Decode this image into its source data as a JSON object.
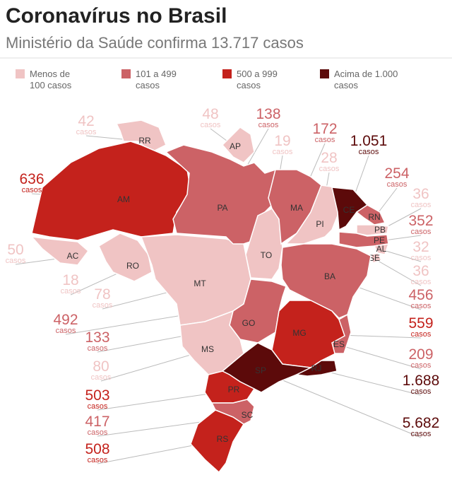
{
  "header": {
    "title": "Coronavírus no Brasil",
    "subtitle": "Ministério da Saúde confirma 13.717 casos"
  },
  "legend": [
    {
      "lines": [
        "Menos de",
        "100 casos"
      ],
      "color": "#f0c4c4"
    },
    {
      "lines": [
        "101 a 499",
        "casos"
      ],
      "color": "#cc6266"
    },
    {
      "lines": [
        "500 a 999",
        "casos"
      ],
      "color": "#c4221c"
    },
    {
      "lines": [
        "Acima de 1.000",
        "casos"
      ],
      "color": "#5c0a0a"
    }
  ],
  "unit_label": "casos",
  "states": [
    {
      "abbr": "RR",
      "cases": 42,
      "color": "#f0c4c4"
    },
    {
      "abbr": "AP",
      "cases": 48,
      "color": "#f0c4c4"
    },
    {
      "abbr": "AM",
      "cases": 636,
      "color": "#c4221c"
    },
    {
      "abbr": "AC",
      "cases": 50,
      "color": "#f0c4c4"
    },
    {
      "abbr": "RO",
      "cases": 18,
      "color": "#f0c4c4"
    },
    {
      "abbr": "MT",
      "cases": 78,
      "color": "#f0c4c4"
    },
    {
      "abbr": "PA",
      "cases": 138,
      "color": "#cc6266"
    },
    {
      "abbr": "TO",
      "cases": 19,
      "color": "#f0c4c4"
    },
    {
      "abbr": "MA",
      "cases": 172,
      "color": "#cc6266"
    },
    {
      "abbr": "PI",
      "cases": 28,
      "color": "#f0c4c4"
    },
    {
      "abbr": "CE",
      "cases": {
        "value": 1051,
        "label": "1.051"
      },
      "color": "#5c0a0a"
    },
    {
      "abbr": "RN",
      "cases": 254,
      "color": "#cc6266"
    },
    {
      "abbr": "PB",
      "cases": 36,
      "color": "#f0c4c4"
    },
    {
      "abbr": "PE",
      "cases": 352,
      "color": "#cc6266"
    },
    {
      "abbr": "AL",
      "cases": 32,
      "color": "#f0c4c4"
    },
    {
      "abbr": "SE",
      "cases": 36,
      "color": "#f0c4c4"
    },
    {
      "abbr": "BA",
      "cases": 456,
      "color": "#cc6266"
    },
    {
      "abbr": "DF",
      "cases": 492,
      "color": "#cc6266"
    },
    {
      "abbr": "GO",
      "cases": 133,
      "color": "#cc6266"
    },
    {
      "abbr": "MG",
      "cases": 559,
      "color": "#c4221c"
    },
    {
      "abbr": "ES",
      "cases": 209,
      "color": "#cc6266"
    },
    {
      "abbr": "MS",
      "cases": 80,
      "color": "#f0c4c4"
    },
    {
      "abbr": "SP",
      "cases": {
        "value": 5682,
        "label": "5.682"
      },
      "color": "#5c0a0a"
    },
    {
      "abbr": "RJ",
      "cases": {
        "value": 1688,
        "label": "1.688"
      },
      "color": "#5c0a0a"
    },
    {
      "abbr": "PR",
      "cases": 503,
      "color": "#c4221c"
    },
    {
      "abbr": "SC",
      "cases": 417,
      "color": "#cc6266"
    },
    {
      "abbr": "RS",
      "cases": 508,
      "color": "#c4221c"
    }
  ]
}
